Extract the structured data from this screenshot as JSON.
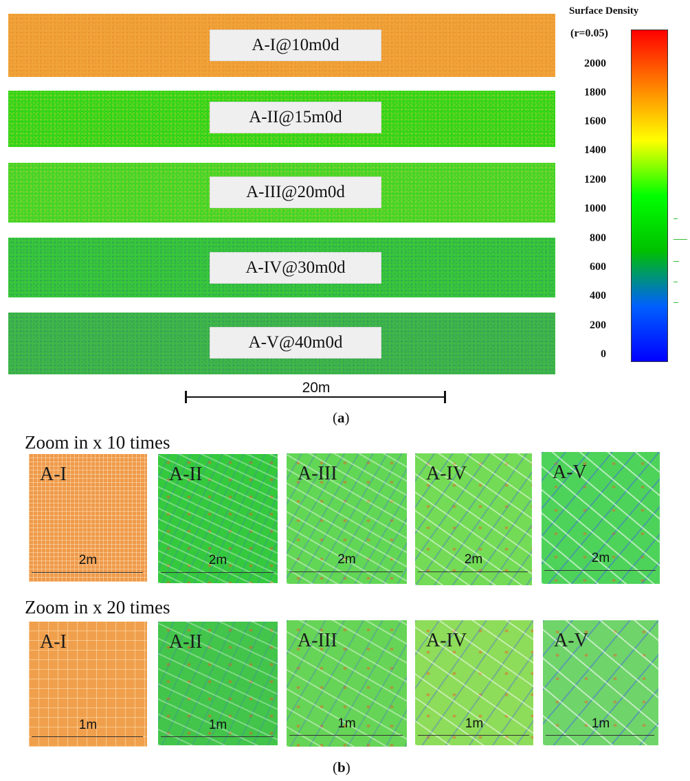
{
  "part_a": {
    "strips": [
      {
        "label": "A-I@10m0d",
        "color": "#f0a43a"
      },
      {
        "label": "A-II@15m0d",
        "color": "#33d41b"
      },
      {
        "label": "A-III@20m0d",
        "color": "#44d42a"
      },
      {
        "label": "A-IV@30m0d",
        "color": "#38c83a"
      },
      {
        "label": "A-V@40m0d",
        "color": "#3fb848"
      }
    ],
    "scale_bar": "20m",
    "panel_label": "a"
  },
  "legend": {
    "title": "Surface Density",
    "subtitle": "(r=0.05)",
    "ticks": [
      "2000",
      "1800",
      "1600",
      "1400",
      "1200",
      "1000",
      "800",
      "600",
      "400",
      "200",
      "0"
    ],
    "colors": [
      "#ff0000",
      "#ff8000",
      "#ffff00",
      "#00ff00",
      "#00c000",
      "#0060ff",
      "#0000ff"
    ]
  },
  "part_b": {
    "panel_label": "b",
    "rows": [
      {
        "heading": "Zoom in x 10 times",
        "scale": "2m",
        "tiles": [
          {
            "name": "A-I",
            "color": "#ef9a4a"
          },
          {
            "name": "A-II",
            "color": "#35c93e"
          },
          {
            "name": "A-III",
            "color": "#62d655"
          },
          {
            "name": "A-IV",
            "color": "#73db55"
          },
          {
            "name": "A-V",
            "color": "#4ed35a"
          }
        ]
      },
      {
        "heading": "Zoom in x 20 times",
        "scale": "1m",
        "tiles": [
          {
            "name": "A-I",
            "color": "#f0a04c"
          },
          {
            "name": "A-II",
            "color": "#42c54a"
          },
          {
            "name": "A-III",
            "color": "#66d456"
          },
          {
            "name": "A-IV",
            "color": "#8ddc5a"
          },
          {
            "name": "A-V",
            "color": "#6fd46a"
          }
        ]
      }
    ]
  }
}
